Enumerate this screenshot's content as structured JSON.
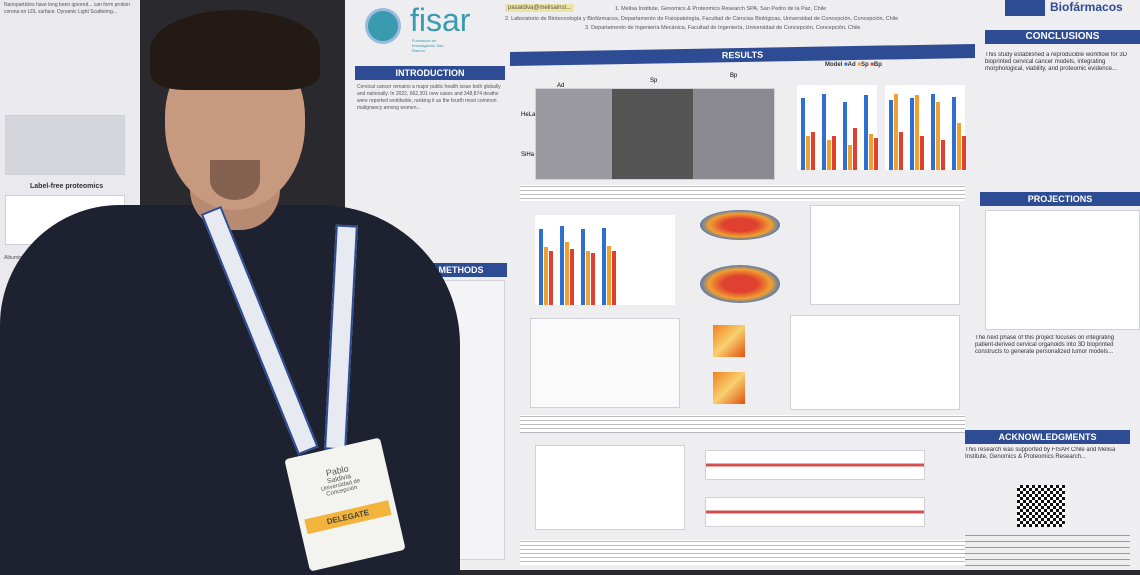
{
  "poster": {
    "logo_left": "fisar",
    "logo_left_sub": "Fundación de Investigación San Ramón",
    "logo_right": "Biofármacos",
    "email": "pasaldiva@melisainst...",
    "affiliations": [
      "1. Melisa Institute, Genomics & Proteomics Research SPA, San Pedro de la Paz, Chile",
      "2. Laboratorio de Biotecnología y Biofármacos, Departamento de Fisiopatología, Facultad de Ciencias Biológicas, Universidad de Concepción, Concepción, Chile",
      "3. Departamento de Ingeniería Mecánica, Facultad de Ingeniería, Universidad de Concepción, Concepción, Chile"
    ],
    "sections": {
      "introduction": "INTRODUCTION",
      "results": "RESULTS",
      "methods": "METHODS",
      "conclusions": "CONCLUSIONS",
      "projections": "PROJECTIONS",
      "acknowledgments": "ACKNOWLEDGMENTS"
    },
    "legend": {
      "title": "Model",
      "items": [
        "Ad",
        "Sp",
        "Bp"
      ]
    },
    "row_labels": [
      "HeLa",
      "SiHa"
    ],
    "col_labels": [
      "Ad",
      "Sp",
      "Bp"
    ],
    "left_label": "Label-free proteomics",
    "intro_text": "Cervical cancer remains a major public health issue both globally and nationally. In 2022, 662,301 new cases and 348,874 deaths were reported worldwide, ranking it as the fourth most common malignancy among women...",
    "conclusions_text": "This study established a reproducible workflow for 3D bioprinted cervical cancer models, integrating morphological, viability, and proteomic evidence...",
    "projections_text": "The next phase of this project focuses on integrating patient-derived cervical organoids into 3D bioprinted constructs to generate personalized tumor models...",
    "ack_text": "This research was supported by FISAR Chile and Melisa Institute, Genomics & Proteomics Research..."
  },
  "badge": {
    "first_name": "Pablo",
    "last_name": "Saldivia",
    "institution": "Universidad de Concepción",
    "role": "DELEGATE"
  },
  "colors": {
    "header": "#2d4c94",
    "ad": "#2f6fd0",
    "sp": "#f0a030",
    "bp": "#e04030"
  }
}
